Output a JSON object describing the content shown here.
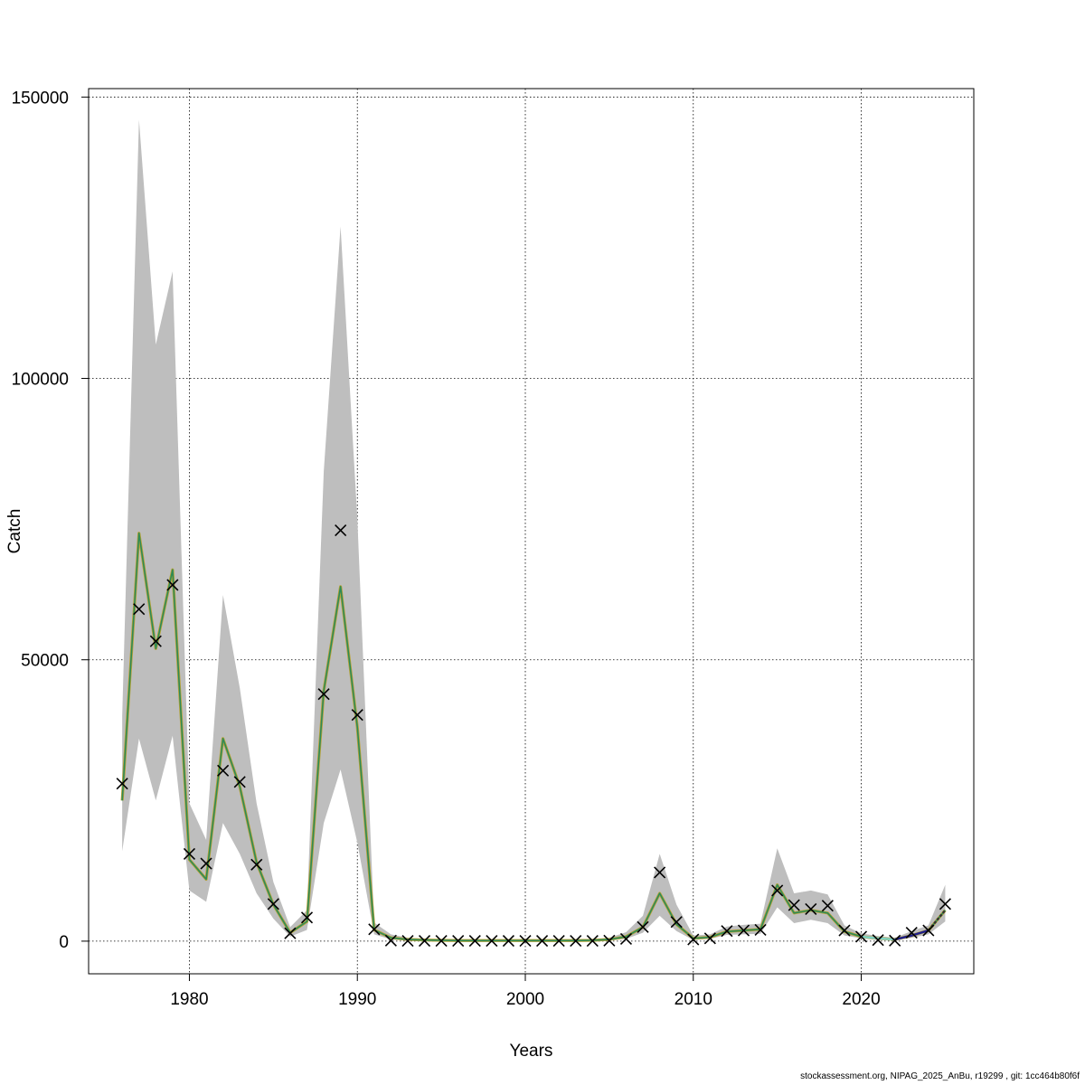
{
  "chart_data": {
    "type": "line",
    "title": "",
    "xlabel": "Years",
    "ylabel": "Catch",
    "xlim": [
      1974,
      2026.7
    ],
    "ylim": [
      -5800,
      151500
    ],
    "x_ticks": [
      1980,
      1990,
      2000,
      2010,
      2020
    ],
    "y_ticks": [
      0,
      50000,
      100000,
      150000
    ],
    "grid": true,
    "x": [
      1976,
      1977,
      1978,
      1979,
      1980,
      1981,
      1982,
      1983,
      1984,
      1985,
      1986,
      1987,
      1988,
      1989,
      1990,
      1991,
      1992,
      1993,
      1994,
      1995,
      1996,
      1997,
      1998,
      1999,
      2000,
      2001,
      2002,
      2003,
      2004,
      2005,
      2006,
      2007,
      2008,
      2009,
      2010,
      2011,
      2012,
      2013,
      2014,
      2015,
      2016,
      2017,
      2018,
      2019,
      2020,
      2021,
      2022,
      2023,
      2024,
      2025
    ],
    "series": [
      {
        "role": "estimate",
        "color": "#6B8E23",
        "values": [
          25000,
          72500,
          52000,
          66000,
          14500,
          11000,
          36000,
          27500,
          14000,
          6500,
          1500,
          3500,
          44500,
          63000,
          38000,
          2000,
          600,
          300,
          200,
          150,
          100,
          100,
          100,
          100,
          100,
          100,
          100,
          100,
          150,
          300,
          800,
          2500,
          8500,
          3000,
          500,
          700,
          1700,
          1900,
          2100,
          10000,
          5000,
          5500,
          5000,
          1700,
          800,
          500,
          300,
          1000,
          1900,
          5500
        ]
      },
      {
        "role": "observed",
        "marker": "x",
        "values": [
          28000,
          59000,
          53300,
          63300,
          15500,
          13800,
          30300,
          28300,
          13600,
          6600,
          1400,
          4200,
          43900,
          73000,
          40200,
          2100,
          100,
          50,
          50,
          50,
          50,
          50,
          50,
          50,
          50,
          50,
          50,
          50,
          50,
          100,
          400,
          2500,
          12200,
          3400,
          300,
          500,
          1800,
          1900,
          2000,
          9000,
          6400,
          5700,
          6300,
          1900,
          800,
          200,
          100,
          1500,
          1900,
          6600
        ]
      }
    ],
    "confidence_band": {
      "color": "#BEBEBE",
      "lower": [
        16000,
        36000,
        25000,
        36500,
        9000,
        7000,
        21000,
        15500,
        8500,
        4000,
        800,
        2000,
        21000,
        30500,
        17500,
        1200,
        300,
        150,
        100,
        80,
        60,
        60,
        60,
        60,
        60,
        60,
        60,
        60,
        80,
        150,
        400,
        1500,
        4500,
        1800,
        200,
        400,
        1100,
        1200,
        1300,
        6000,
        3200,
        3800,
        3200,
        1000,
        500,
        200,
        100,
        600,
        1200,
        3500
      ],
      "upper": [
        40000,
        146000,
        106000,
        119000,
        24500,
        18000,
        61500,
        45000,
        24500,
        10500,
        2500,
        5500,
        83500,
        127000,
        75000,
        3300,
        1200,
        600,
        400,
        300,
        200,
        200,
        200,
        200,
        200,
        200,
        200,
        200,
        300,
        600,
        1600,
        4500,
        15500,
        6500,
        1000,
        1200,
        2600,
        2900,
        3100,
        16500,
        8500,
        9000,
        8300,
        2800,
        1400,
        900,
        600,
        1800,
        2800,
        10000
      ]
    }
  },
  "footer": "stockassessment.org, NIPAG_2025_AnBu, r19299 , git: 1cc464b80f6f"
}
